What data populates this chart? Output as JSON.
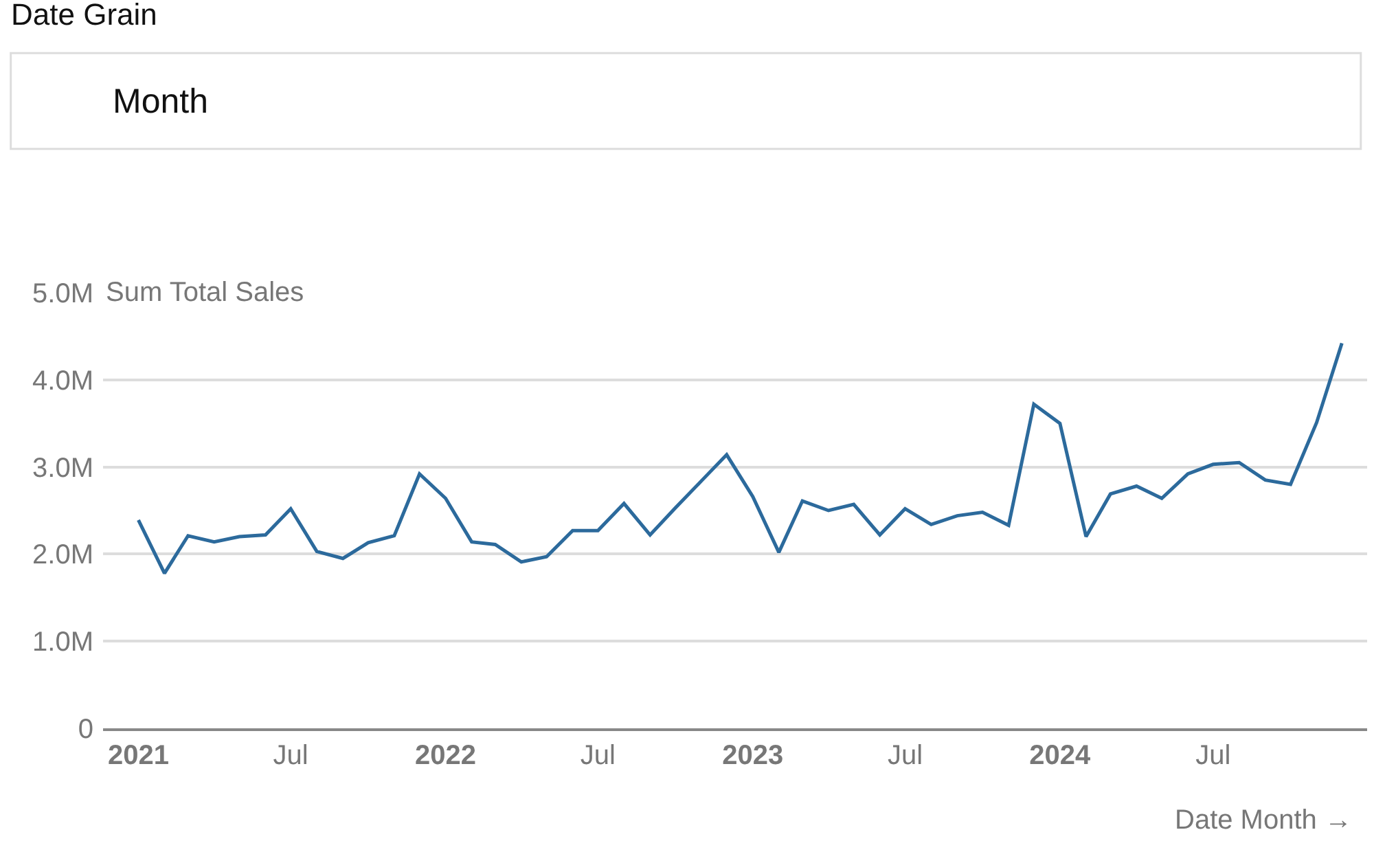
{
  "chart_data": {
    "type": "line",
    "title": "Date Grain",
    "subtitle": "Month",
    "ylabel": "Sum Total Sales",
    "xlabel": "Date Month →",
    "x": [
      "2021-01",
      "2021-02",
      "2021-03",
      "2021-04",
      "2021-05",
      "2021-06",
      "2021-07",
      "2021-08",
      "2021-09",
      "2021-10",
      "2021-11",
      "2021-12",
      "2022-01",
      "2022-02",
      "2022-03",
      "2022-04",
      "2022-05",
      "2022-06",
      "2022-07",
      "2022-08",
      "2022-09",
      "2022-10",
      "2022-11",
      "2022-12",
      "2023-01",
      "2023-02",
      "2023-03",
      "2023-04",
      "2023-05",
      "2023-06",
      "2023-07",
      "2023-08",
      "2023-09",
      "2023-10",
      "2023-11",
      "2023-12",
      "2024-01",
      "2024-02",
      "2024-03",
      "2024-04",
      "2024-05",
      "2024-06",
      "2024-07",
      "2024-08",
      "2024-09",
      "2024-10",
      "2024-11",
      "2024-12"
    ],
    "series": [
      {
        "color": "#2c6a9c",
        "values": [
          2390000,
          1780000,
          2210000,
          2140000,
          2200000,
          2220000,
          2520000,
          2030000,
          1950000,
          2130000,
          2210000,
          2920000,
          2640000,
          2140000,
          2110000,
          1910000,
          1970000,
          2270000,
          2270000,
          2580000,
          2220000,
          2530000,
          2840000,
          3140000,
          2660000,
          2020000,
          2610000,
          2500000,
          2570000,
          2220000,
          2520000,
          2340000,
          2440000,
          2480000,
          2330000,
          3720000,
          3500000,
          2200000,
          2690000,
          2780000,
          2640000,
          2920000,
          3030000,
          3050000,
          2850000,
          2800000,
          3510000,
          4420000
        ]
      }
    ],
    "xlim": [
      "2020-11-20",
      "2024-12-31"
    ],
    "xticks": [
      {
        "value": "2021-01",
        "label": "2021"
      },
      {
        "value": "2021-07",
        "label": "Jul"
      },
      {
        "value": "2022-01",
        "label": "2022"
      },
      {
        "value": "2022-07",
        "label": "Jul"
      },
      {
        "value": "2023-01",
        "label": "2023"
      },
      {
        "value": "2023-07",
        "label": "Jul"
      },
      {
        "value": "2024-01",
        "label": "2024"
      },
      {
        "value": "2024-07",
        "label": "Jul"
      }
    ],
    "ylim": [
      0,
      5000000
    ],
    "yticks": [
      0,
      {
        "value": 1000000,
        "label": "1.0M"
      },
      {
        "value": 2000000,
        "label": "2.0M"
      },
      {
        "value": 3000000,
        "label": "3.0M"
      },
      {
        "value": 4000000,
        "label": "4.0M"
      },
      {
        "value": 5000000,
        "label": "5.0M"
      }
    ],
    "grid": "y",
    "line_style": "solid",
    "marker": "none"
  }
}
